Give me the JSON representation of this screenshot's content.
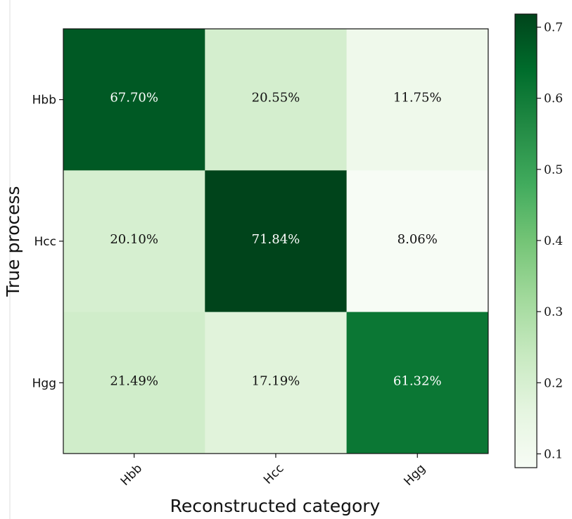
{
  "chart_data": {
    "type": "heatmap",
    "xlabel": "Reconstructed category",
    "ylabel": "True process",
    "x_categories": [
      "Hbb",
      "Hcc",
      "Hgg"
    ],
    "y_categories": [
      "Hbb",
      "Hcc",
      "Hgg"
    ],
    "values": [
      [
        0.677,
        0.2055,
        0.1175
      ],
      [
        0.201,
        0.7184,
        0.0806
      ],
      [
        0.2149,
        0.1719,
        0.6132
      ]
    ],
    "cell_labels": [
      [
        "67.70%",
        "20.55%",
        "11.75%"
      ],
      [
        "20.10%",
        "71.84%",
        "8.06%"
      ],
      [
        "21.49%",
        "17.19%",
        "61.32%"
      ]
    ],
    "colorscale": "Greens",
    "colorbar": {
      "range": [
        0.0806,
        0.7184
      ],
      "ticks": [
        0.1,
        0.2,
        0.3,
        0.4,
        0.5,
        0.6,
        0.7
      ],
      "tick_labels": [
        "0.1",
        "0.2",
        "0.3",
        "0.4",
        "0.5",
        "0.6",
        "0.7"
      ]
    }
  }
}
